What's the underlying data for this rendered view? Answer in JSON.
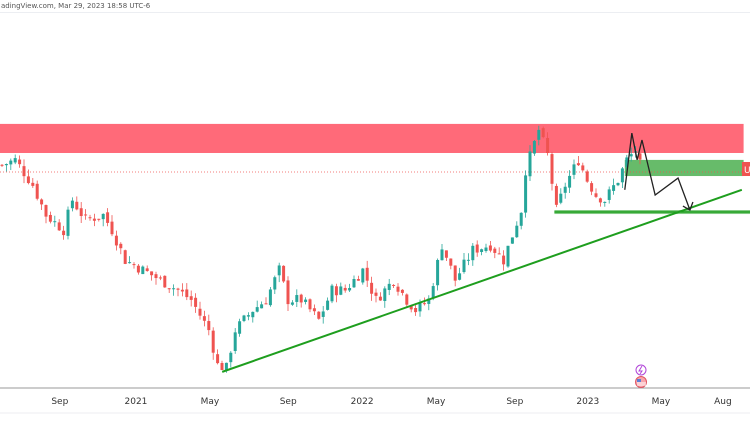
{
  "header": {
    "watermark": "adingView.com, Mar 29, 2023 18:58 UTC-6"
  },
  "price_tag": "U",
  "chart_data": {
    "type": "candlestick",
    "title": "",
    "xlabel": "",
    "ylabel": "",
    "ylim": [
      0,
      100
    ],
    "xlim": [
      0,
      170
    ],
    "x_ticks": [
      {
        "label": "Sep",
        "week": 13.6
      },
      {
        "label": "2021",
        "week": 30.9
      },
      {
        "label": "May",
        "week": 47.7
      },
      {
        "label": "Sep",
        "week": 65.5
      },
      {
        "label": "2022",
        "week": 82.3
      },
      {
        "label": "May",
        "week": 99.1
      },
      {
        "label": "Sep",
        "week": 117
      },
      {
        "label": "2023",
        "week": 133.6
      },
      {
        "label": "May",
        "week": 150.2
      },
      {
        "label": "Aug",
        "week": 164.3
      }
    ],
    "close_path": [
      [
        0,
        77.4
      ],
      [
        3,
        79.2
      ],
      [
        7,
        70.5
      ],
      [
        10,
        60.1
      ],
      [
        14,
        54.9
      ],
      [
        16,
        65.3
      ],
      [
        19,
        58.3
      ],
      [
        23,
        60.1
      ],
      [
        25,
        54.9
      ],
      [
        28,
        44.4
      ],
      [
        32,
        41.0
      ],
      [
        36,
        37.5
      ],
      [
        40,
        34.0
      ],
      [
        43,
        30.6
      ],
      [
        47,
        20.1
      ],
      [
        49,
        8.0
      ],
      [
        51,
        6.9
      ],
      [
        53,
        20.1
      ],
      [
        57,
        27.1
      ],
      [
        60,
        30.6
      ],
      [
        63,
        41.0
      ],
      [
        65,
        30.6
      ],
      [
        68,
        30.6
      ],
      [
        72,
        23.6
      ],
      [
        75,
        34.0
      ],
      [
        78,
        34.0
      ],
      [
        82,
        41.0
      ],
      [
        85,
        30.6
      ],
      [
        89,
        37.5
      ],
      [
        92,
        30.6
      ],
      [
        94,
        27.1
      ],
      [
        97,
        30.6
      ],
      [
        100,
        49.7
      ],
      [
        103,
        37.5
      ],
      [
        107,
        47.9
      ],
      [
        111,
        49.7
      ],
      [
        114,
        44.4
      ],
      [
        116,
        53.1
      ],
      [
        118,
        61.8
      ],
      [
        119,
        75.7
      ],
      [
        122,
        89.6
      ],
      [
        124,
        80.9
      ],
      [
        126,
        61.8
      ],
      [
        128,
        70.5
      ],
      [
        131,
        79.2
      ],
      [
        133,
        72.2
      ],
      [
        135,
        67.0
      ],
      [
        137,
        65.3
      ],
      [
        140,
        72.2
      ],
      [
        142,
        79.2
      ],
      [
        144,
        82.6
      ],
      [
        145,
        77.4
      ]
    ],
    "colors": {
      "up": "#26a69a",
      "down": "#ef5350"
    },
    "current_price": 75,
    "annotations": {
      "resistance_zone": {
        "from_week": 0,
        "to_week": 169,
        "low": 81.6,
        "high": 91.7,
        "color": "#ff5a6a"
      },
      "target_zone": {
        "from_week": 142,
        "to_week": 169,
        "low": 73.6,
        "high": 79.2,
        "color": "#4caf50"
      },
      "support_line": {
        "from_week": 126,
        "to_week": 171,
        "value": 61.1,
        "color": "#1e9e1e"
      },
      "trendline": {
        "points": [
          [
            50.5,
            5.6
          ],
          [
            168.6,
            68.8
          ]
        ],
        "color": "#1e9e1e"
      },
      "projection_path": {
        "points": [
          [
            142,
            68.8
          ],
          [
            143.6,
            88.5
          ],
          [
            144.8,
            79.2
          ],
          [
            145.9,
            86.1
          ],
          [
            148.9,
            67.0
          ],
          [
            154.1,
            72.9
          ],
          [
            156.8,
            61.8
          ]
        ],
        "color": "#222222"
      }
    }
  }
}
